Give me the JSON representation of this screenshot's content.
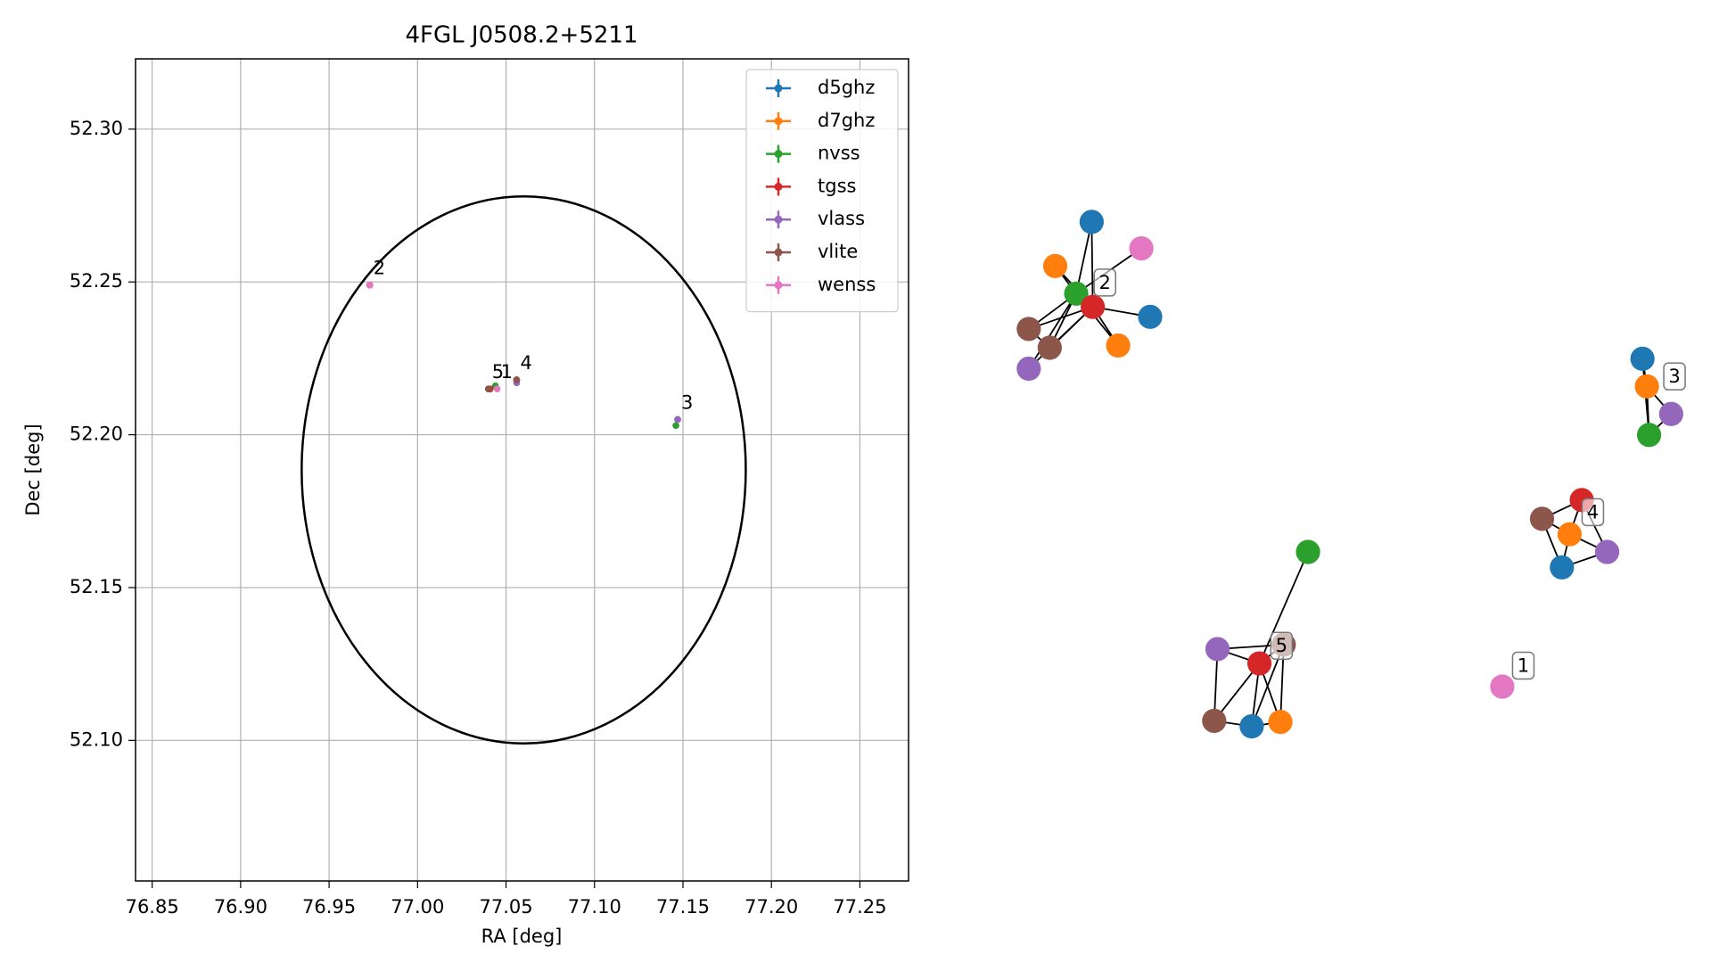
{
  "chart_data": [
    {
      "type": "scatter",
      "title": "4FGL J0508.2+5211",
      "x_label": "RA [deg]",
      "y_label": "Dec [deg]",
      "xlim": [
        76.8406,
        77.2775
      ],
      "ylim": [
        52.054,
        52.323
      ],
      "xticks": [
        76.85,
        {
          "value": 76.9,
          "label": "76.90"
        },
        76.95,
        {
          "value": 77,
          "label": "77.00"
        },
        77.05,
        {
          "value": 77.1,
          "label": "77.10"
        },
        77.15,
        {
          "value": 77.2,
          "label": "77.20"
        },
        77.25
      ],
      "yticks": [
        {
          "value": 52.1,
          "label": "52.10"
        },
        52.15,
        {
          "value": 52.2,
          "label": "52.20"
        },
        52.25,
        {
          "value": 52.3,
          "label": "52.30"
        }
      ],
      "grid": true,
      "legend": "upper right",
      "ellipse": {
        "center": [
          77.06,
          52.1885
        ],
        "width": 0.251,
        "height": 0.179,
        "color": "#000000"
      },
      "series": [
        {
          "name": "d5ghz",
          "color": "#1f77b4",
          "x": [
            76.973,
            77.147,
            77.056,
            77.041
          ],
          "y": [
            52.249,
            52.205,
            52.218,
            52.215
          ]
        },
        {
          "name": "d7ghz",
          "color": "#ff7f0e",
          "x": [
            76.973,
            77.147,
            77.056,
            77.041
          ],
          "y": [
            52.249,
            52.205,
            52.218,
            52.215
          ]
        },
        {
          "name": "nvss",
          "color": "#2ca02c",
          "x": [
            76.973,
            77.146,
            77.044
          ],
          "y": [
            52.249,
            52.203,
            52.216
          ]
        },
        {
          "name": "tgss",
          "color": "#d62728",
          "x": [
            76.973,
            77.056,
            77.041
          ],
          "y": [
            52.249,
            52.218,
            52.215
          ]
        },
        {
          "name": "vlass",
          "color": "#9467bd",
          "x": [
            76.973,
            77.147,
            77.056,
            77.04
          ],
          "y": [
            52.249,
            52.205,
            52.217,
            52.215
          ]
        },
        {
          "name": "vlite",
          "color": "#8c564b",
          "x": [
            76.973,
            77.056,
            77.04
          ],
          "y": [
            52.249,
            52.218,
            52.215
          ]
        },
        {
          "name": "wenss",
          "color": "#e377c2",
          "x": [
            76.973,
            77.045
          ],
          "y": [
            52.249,
            52.215
          ]
        }
      ],
      "annotations": [
        {
          "text": "2",
          "x": 76.973,
          "y": 52.249
        },
        {
          "text": "5",
          "x": 77.04,
          "y": 52.215
        },
        {
          "text": "1",
          "x": 77.045,
          "y": 52.215
        },
        {
          "text": "4",
          "x": 77.056,
          "y": 52.218
        },
        {
          "text": "3",
          "x": 77.147,
          "y": 52.205
        }
      ]
    },
    {
      "type": "network",
      "labels": [
        "1",
        "2",
        "3",
        "4",
        "5"
      ],
      "nodes": [
        0,
        6,
        1,
        2,
        3,
        0,
        5,
        5,
        1,
        4,
        0,
        1,
        4,
        2,
        3,
        5,
        1,
        4,
        0,
        2,
        5,
        4,
        3,
        5,
        0,
        1,
        6
      ],
      "edges": [
        [
          0,
          4
        ],
        [
          0,
          3
        ],
        [
          3,
          4
        ],
        [
          2,
          3
        ],
        [
          2,
          4
        ],
        [
          1,
          3
        ],
        [
          4,
          5
        ],
        [
          4,
          8
        ],
        [
          3,
          8
        ],
        [
          6,
          3
        ],
        [
          6,
          4
        ],
        [
          7,
          3
        ],
        [
          7,
          4
        ],
        [
          9,
          3
        ],
        [
          9,
          4
        ],
        [
          6,
          7
        ],
        [
          10,
          11
        ],
        [
          11,
          12
        ],
        [
          11,
          13
        ],
        [
          10,
          13
        ],
        [
          12,
          13
        ],
        [
          14,
          15
        ],
        [
          14,
          16
        ],
        [
          15,
          16
        ],
        [
          15,
          18
        ],
        [
          16,
          17
        ],
        [
          16,
          18
        ],
        [
          14,
          17
        ],
        [
          17,
          18
        ],
        [
          19,
          22
        ],
        [
          20,
          21
        ],
        [
          21,
          22
        ],
        [
          21,
          23
        ],
        [
          22,
          23
        ],
        [
          22,
          24
        ],
        [
          22,
          25
        ],
        [
          20,
          24
        ],
        [
          20,
          25
        ],
        [
          23,
          24
        ],
        [
          24,
          25
        ],
        [
          20,
          22
        ]
      ]
    }
  ]
}
